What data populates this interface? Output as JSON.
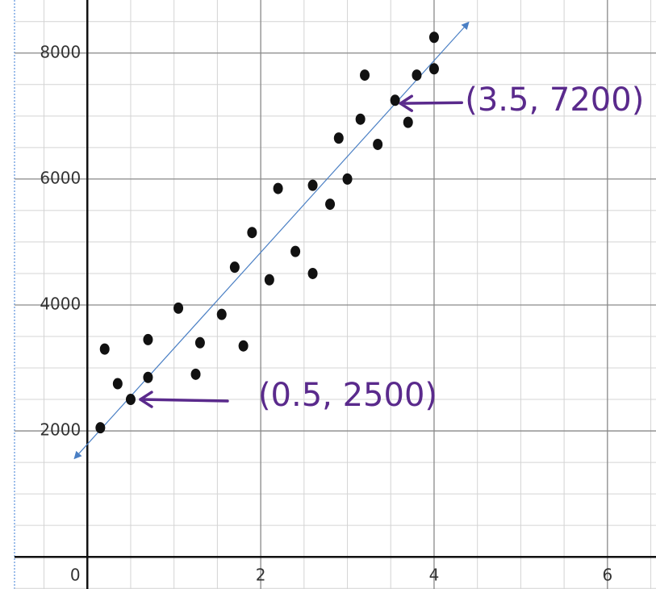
{
  "chart_data": {
    "type": "scatter",
    "x": [
      0.15,
      0.2,
      0.35,
      0.5,
      0.7,
      0.7,
      1.05,
      1.25,
      1.3,
      1.55,
      1.7,
      1.8,
      1.9,
      2.1,
      2.2,
      2.4,
      2.6,
      2.6,
      2.8,
      2.9,
      3.0,
      3.15,
      3.35,
      3.2,
      3.55,
      3.7,
      3.8,
      4.0,
      4.0
    ],
    "values": [
      2050,
      3300,
      2750,
      2500,
      2850,
      3450,
      3950,
      2900,
      3400,
      3850,
      4600,
      3350,
      5150,
      4400,
      5850,
      4850,
      5900,
      4500,
      5600,
      6650,
      6000,
      6950,
      6550,
      7650,
      7250,
      6900,
      7650,
      8250,
      7750
    ],
    "color": "#111111",
    "trend_line": {
      "x": [
        -0.15,
        4.4
      ],
      "values": [
        1560,
        8490
      ],
      "color": "#4a7fc4"
    },
    "xlim": [
      -0.84,
      6.56
    ],
    "ylim": [
      -510,
      8740
    ],
    "xticks": [
      0,
      2,
      4,
      6
    ],
    "yticks": [
      2000,
      4000,
      6000,
      8000
    ],
    "minor_grid": {
      "x": 0.5,
      "y": 500
    },
    "grid": true,
    "annotations": [
      {
        "text": "(0.5, 2500)",
        "x": 0.5,
        "y": 2500,
        "color": "#5a2a8c"
      },
      {
        "text": "(3.5, 7200)",
        "x": 3.5,
        "y": 7200,
        "color": "#5a2a8c"
      }
    ]
  }
}
